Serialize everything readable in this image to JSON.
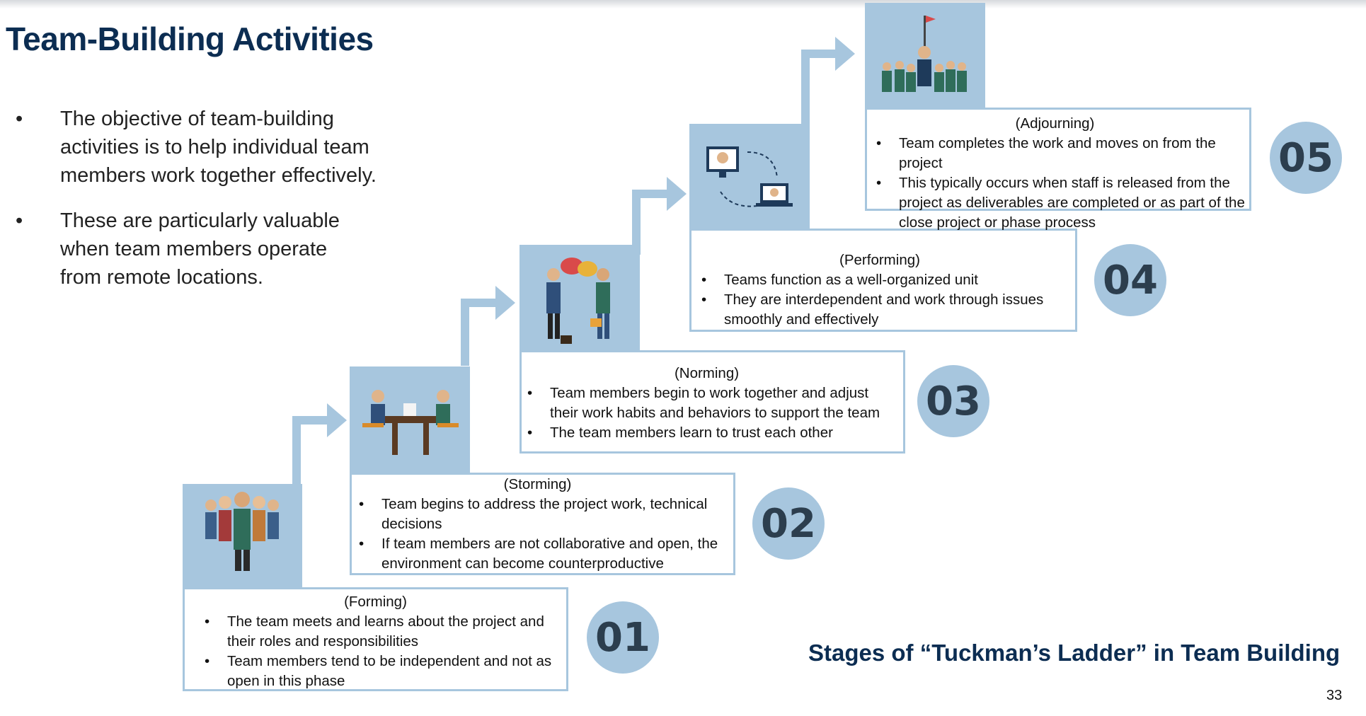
{
  "title": "Team-Building Activities",
  "bullets": [
    "The objective of team-building activities is to help individual team members work together effectively.",
    "These are particularly valuable when team  members operate from remote locations."
  ],
  "bullet_symbol": "•",
  "stages": [
    {
      "number": "01",
      "phase": "(Forming)",
      "points": [
        "The team meets and learns about the project and their roles and responsibilities",
        "Team members tend to be independent and not as open in this phase"
      ],
      "icon": "team-group-icon"
    },
    {
      "number": "02",
      "phase": "(Storming)",
      "points": [
        "Team begins to address the project work, technical decisions",
        "If team members are not collaborative and open, the environment can become counterproductive"
      ],
      "icon": "meeting-table-icon"
    },
    {
      "number": "03",
      "phase": "(Norming)",
      "points": [
        "Team members begin to work together and adjust their work habits and behaviors to support the team",
        "The team members learn to trust each other"
      ],
      "icon": "handshake-icon"
    },
    {
      "number": "04",
      "phase": "(Performing)",
      "points": [
        "Teams function as a well-organized unit",
        "They are interdependent and work through issues smoothly and effectively"
      ],
      "icon": "remote-collaboration-icon"
    },
    {
      "number": "05",
      "phase": "(Adjourning)",
      "points": [
        "Team completes the work and moves on from the project",
        "This typically occurs when staff is released from the project as deliverables are completed or as part of the close project or phase process"
      ],
      "icon": "celebration-crowd-icon"
    }
  ],
  "caption": "Stages of “Tuckman’s Ladder” in Team Building",
  "page_number": "33",
  "colors": {
    "title": "#0c2d52",
    "accent": "#a7c6de",
    "number_text": "#2c3e4e"
  }
}
